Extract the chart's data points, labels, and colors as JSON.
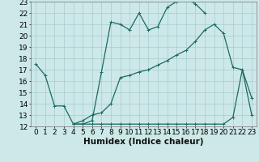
{
  "xlabel": "Humidex (Indice chaleur)",
  "xlim": [
    -0.5,
    23.5
  ],
  "ylim": [
    12,
    23
  ],
  "background_color": "#cde8e8",
  "grid_color": "#a8cccc",
  "line_color": "#1a6b60",
  "line1": {
    "x": [
      0,
      1,
      2,
      3,
      4,
      5,
      6,
      7,
      8,
      9,
      10,
      11,
      12,
      13,
      14,
      15,
      16,
      17,
      18,
      19,
      20,
      21,
      22,
      23
    ],
    "y": [
      17.5,
      16.5,
      13.8,
      13.8,
      12.2,
      12.5,
      13.0,
      13.2,
      14.0,
      16.3,
      16.5,
      16.8,
      17.0,
      17.4,
      17.8,
      18.3,
      18.7,
      19.5,
      20.5,
      21.0,
      20.2,
      17.2,
      17.0,
      14.5
    ]
  },
  "line2": {
    "x": [
      4,
      5,
      6,
      7,
      8,
      9,
      10,
      11,
      12,
      13,
      14,
      15,
      16,
      17,
      18
    ],
    "y": [
      12.2,
      12.2,
      12.5,
      16.8,
      21.2,
      21.0,
      20.5,
      22.0,
      20.5,
      20.8,
      22.5,
      23.0,
      23.3,
      22.8,
      22.0
    ]
  },
  "line3": {
    "x": [
      4,
      5,
      6,
      7,
      8,
      9,
      10,
      11,
      12,
      13,
      14,
      15,
      16,
      17,
      18,
      19,
      20,
      21,
      22,
      23
    ],
    "y": [
      12.2,
      12.2,
      12.2,
      12.2,
      12.2,
      12.2,
      12.2,
      12.2,
      12.2,
      12.2,
      12.2,
      12.2,
      12.2,
      12.2,
      12.2,
      12.2,
      12.2,
      12.8,
      17.0,
      13.0
    ]
  },
  "xticks": [
    0,
    1,
    2,
    3,
    4,
    5,
    6,
    7,
    8,
    9,
    10,
    11,
    12,
    13,
    14,
    15,
    16,
    17,
    18,
    19,
    20,
    21,
    22,
    23
  ],
  "yticks": [
    12,
    13,
    14,
    15,
    16,
    17,
    18,
    19,
    20,
    21,
    22,
    23
  ],
  "tick_fontsize": 6.5,
  "label_fontsize": 7.5
}
